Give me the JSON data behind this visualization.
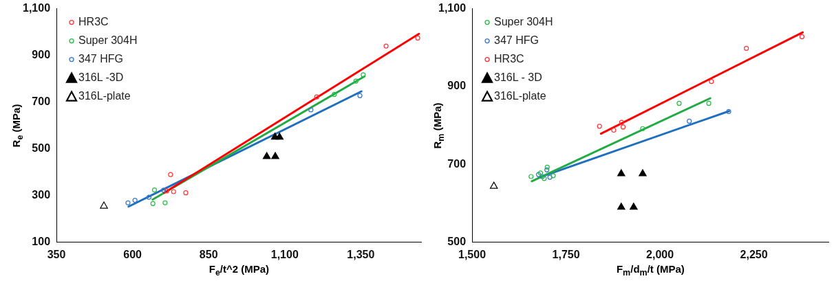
{
  "chart_data": [
    {
      "type": "scatter",
      "xlabel": "F$_{e}$/t^2 (MPa)",
      "ylabel": "R$_{e}$ (MPa)",
      "xlim": [
        350,
        1550
      ],
      "xticks": [
        {
          "value": 350,
          "label": "350"
        },
        {
          "value": 600,
          "label": "600"
        },
        {
          "value": 850,
          "label": "850"
        },
        {
          "value": 1100,
          "label": "1,100"
        },
        {
          "value": 1350,
          "label": "1,350"
        }
      ],
      "ylim": [
        100,
        1100
      ],
      "yticks": [
        {
          "value": 100,
          "label": "100"
        },
        {
          "value": 300,
          "label": "300"
        },
        {
          "value": 500,
          "label": "500"
        },
        {
          "value": 700,
          "label": "700"
        },
        {
          "value": 900,
          "label": "900"
        },
        {
          "value": 1100,
          "label": "1,100"
        }
      ],
      "grid": false,
      "legend": "top left",
      "series": [
        {
          "name": "HR3C",
          "color": "#ff3333",
          "marker": "circle",
          "x": [
            1537,
            1433,
            1205,
            725,
            735,
            775,
            712
          ],
          "values": [
            974,
            940,
            722,
            390,
            317,
            312,
            320
          ]
        },
        {
          "name": "Super 304H",
          "color": "#22bb44",
          "marker": "circle",
          "x": [
            1358,
            1334,
            1263,
            672,
            667,
            707
          ],
          "values": [
            817,
            790,
            733,
            324,
            266,
            269
          ]
        },
        {
          "name": "347 HFG",
          "color": "#3377cc",
          "marker": "circle",
          "x": [
            1347,
            1186,
            585,
            608,
            654,
            702
          ],
          "values": [
            728,
            667,
            269,
            280,
            293,
            323
          ]
        },
        {
          "name": "316L -3D",
          "color": "#000000",
          "marker": "triangle",
          "x": [
            1041,
            1069,
            1068,
            1083
          ],
          "values": [
            467,
            467,
            550,
            550
          ]
        },
        {
          "name": "316L-plate",
          "color": "#000000",
          "marker": "triangle",
          "x": [
            506
          ],
          "values": [
            255
          ]
        },
        {
          "type": "line",
          "color": "#ff0000",
          "marker": "none",
          "x": [
            704,
            1541
          ],
          "values": [
            312,
            992
          ]
        },
        {
          "type": "line",
          "color": "#22aa44",
          "marker": "none",
          "x": [
            666,
            1362
          ],
          "values": [
            283,
            810
          ]
        },
        {
          "type": "line",
          "color": "#1f6fc0",
          "marker": "none",
          "x": [
            587,
            1352
          ],
          "values": [
            253,
            746
          ]
        }
      ]
    },
    {
      "type": "scatter",
      "xlabel": "F$_{m}$/d$_{m}$/t (MPa)",
      "ylabel": "R$_{m}$ (MPa)",
      "xlim": [
        1500,
        2450
      ],
      "xticks": [
        {
          "value": 1500,
          "label": "1,500"
        },
        {
          "value": 1750,
          "label": "1,750"
        },
        {
          "value": 2000,
          "label": "2,000"
        },
        {
          "value": 2250,
          "label": "2,250"
        }
      ],
      "ylim": [
        500,
        1100
      ],
      "yticks": [
        500,
        700,
        900,
        {
          "value": 1100,
          "label": "1,100"
        }
      ],
      "grid": false,
      "legend": "top left",
      "series": [
        {
          "name": "Super 304H",
          "color": "#22bb44",
          "marker": "circle",
          "x": [
            1657,
            1682,
            1700,
            1692,
            1716,
            1954,
            2051,
            2130
          ],
          "values": [
            669,
            678,
            693,
            664,
            671,
            792,
            857,
            857
          ]
        },
        {
          "name": "347 HFG",
          "color": "#3377cc",
          "marker": "circle",
          "x": [
            1677,
            1699,
            1707,
            1687,
            2078,
            2183
          ],
          "values": [
            674,
            686,
            667,
            669,
            811,
            836
          ]
        },
        {
          "name": "HR3C",
          "color": "#ff3333",
          "marker": "circle",
          "x": [
            1839,
            1898,
            1877,
            1902,
            2137,
            2230,
            2378
          ],
          "values": [
            798,
            808,
            788,
            796,
            913,
            998,
            1028
          ]
        },
        {
          "name": "316L - 3D",
          "color": "#000000",
          "marker": "triangle",
          "x": [
            1897,
            1954,
            1897,
            1930
          ],
          "values": [
            676,
            676,
            590,
            590
          ]
        },
        {
          "name": "316L-plate",
          "color": "#000000",
          "marker": "triangle",
          "x": [
            1558
          ],
          "values": [
            644
          ]
        },
        {
          "type": "line",
          "color": "#22aa44",
          "marker": "none",
          "x": [
            1659,
            2134
          ],
          "values": [
            657,
            870
          ]
        },
        {
          "type": "line",
          "color": "#1f6fc0",
          "marker": "none",
          "x": [
            1677,
            2184
          ],
          "values": [
            666,
            837
          ]
        },
        {
          "type": "line",
          "color": "#ff0000",
          "marker": "none",
          "x": [
            1843,
            2380
          ],
          "values": [
            779,
            1039
          ]
        }
      ]
    }
  ]
}
